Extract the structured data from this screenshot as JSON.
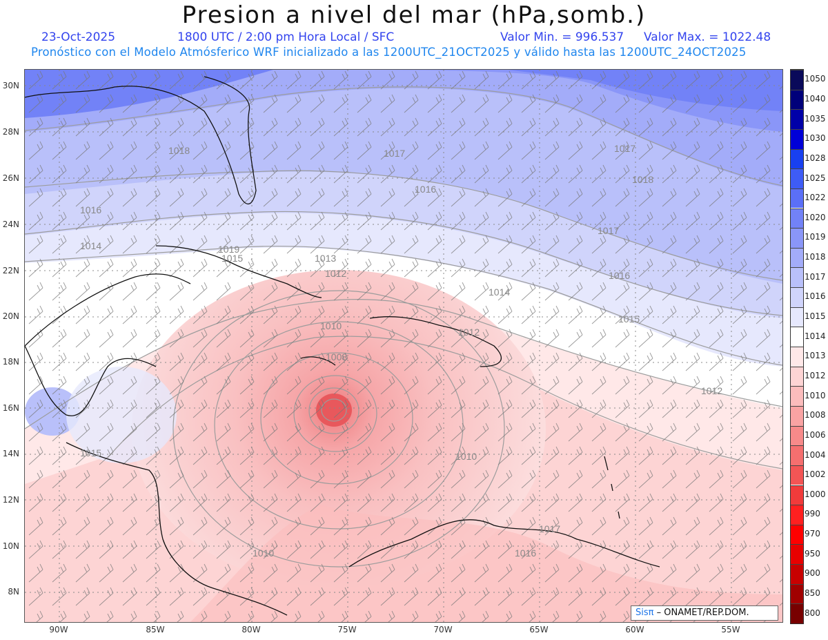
{
  "header": {
    "title": "Presion a nivel del mar (hPa,somb.)",
    "date": "23-Oct-2025",
    "time": "1800 UTC / 2:00 pm Hora Local / SFC",
    "valmin": "Valor Min. = 996.537",
    "valmax": "Valor Max. = 1022.48",
    "subtitle": "Pronóstico con el Modelo Atmósferico WRF inicializado a las 1200UTC_21OCT2025 y válido hasta las  1200UTC_24OCT2025"
  },
  "map": {
    "lat_labels": [
      "30N",
      "28N",
      "26N",
      "24N",
      "22N",
      "20N",
      "18N",
      "16N",
      "14N",
      "12N",
      "10N",
      "8N"
    ],
    "lon_labels": [
      "90W",
      "85W",
      "80W",
      "75W",
      "70W",
      "65W",
      "60W",
      "55W"
    ],
    "contour_labels": [
      {
        "text": "1018"
      },
      {
        "text": "1017"
      },
      {
        "text": "1016"
      },
      {
        "text": "1017"
      },
      {
        "text": "1016"
      },
      {
        "text": "1015"
      },
      {
        "text": "1014"
      },
      {
        "text": "1013"
      },
      {
        "text": "1012"
      },
      {
        "text": "1010"
      },
      {
        "text": "1008"
      },
      {
        "text": "1012"
      },
      {
        "text": "1014"
      },
      {
        "text": "1015"
      },
      {
        "text": "1016"
      },
      {
        "text": "1017"
      },
      {
        "text": "1018"
      },
      {
        "text": "1019"
      },
      {
        "text": "1010"
      },
      {
        "text": "1015"
      },
      {
        "text": "1010"
      },
      {
        "text": "1017"
      },
      {
        "text": "1016"
      },
      {
        "text": "1012"
      }
    ],
    "credit_brand": "Sisπ",
    "credit_text": "– ONAMET/REP.DOM."
  },
  "legend": {
    "unit": "hPa",
    "levels": [
      {
        "label": "1050",
        "color": "#0a0a5a"
      },
      {
        "label": "1040",
        "color": "#00007a"
      },
      {
        "label": "1035",
        "color": "#0000a8"
      },
      {
        "label": "1030",
        "color": "#0000d8"
      },
      {
        "label": "1028",
        "color": "#1840f0"
      },
      {
        "label": "1025",
        "color": "#3e5cf6"
      },
      {
        "label": "1022",
        "color": "#5b6ff7"
      },
      {
        "label": "1020",
        "color": "#7282f7"
      },
      {
        "label": "1019",
        "color": "#8a96f8"
      },
      {
        "label": "1018",
        "color": "#a3acf9"
      },
      {
        "label": "1017",
        "color": "#b9c0fa"
      },
      {
        "label": "1016",
        "color": "#d0d4fb"
      },
      {
        "label": "1015",
        "color": "#e6e8fd"
      },
      {
        "label": "1014",
        "color": "#ffffff"
      },
      {
        "label": "1013",
        "color": "#ffe8e8"
      },
      {
        "label": "1012",
        "color": "#fdd4d4"
      },
      {
        "label": "1010",
        "color": "#fbbcbc"
      },
      {
        "label": "1008",
        "color": "#f9a3a3"
      },
      {
        "label": "1006",
        "color": "#f78a8a"
      },
      {
        "label": "1004",
        "color": "#f56f6f"
      },
      {
        "label": "1002",
        "color": "#f35555"
      },
      {
        "label": "1000",
        "color": "#f13b3b"
      },
      {
        "label": "990",
        "color": "#ff2020"
      },
      {
        "label": "970",
        "color": "#ff0000"
      },
      {
        "label": "950",
        "color": "#e80000"
      },
      {
        "label": "900",
        "color": "#c80000"
      },
      {
        "label": "850",
        "color": "#a00000"
      },
      {
        "label": "800",
        "color": "#780000"
      }
    ]
  }
}
